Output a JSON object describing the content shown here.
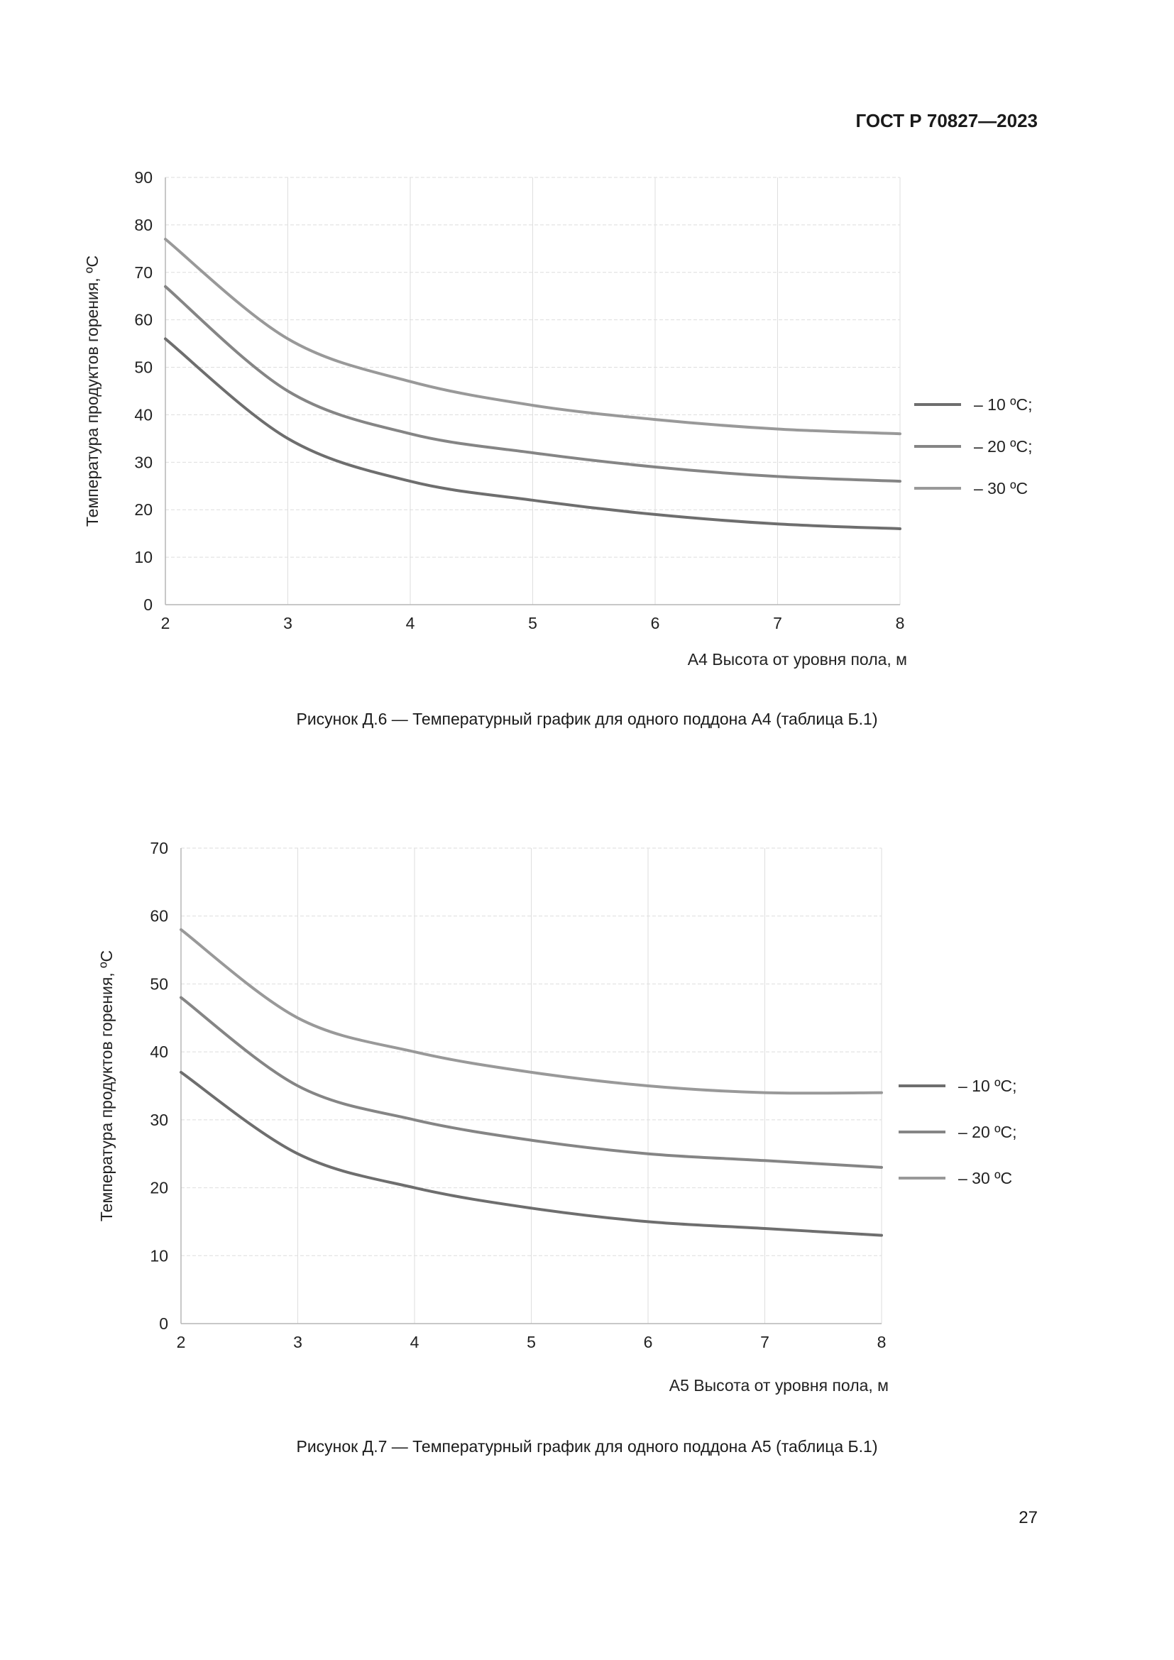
{
  "header": {
    "doc_code": "ГОСТ Р 70827—2023"
  },
  "footer": {
    "page_number": "27"
  },
  "chart_data": [
    {
      "type": "line",
      "caption": "Рисунок Д.6 — Температурный график для одного поддона А4 (таблица Б.1)",
      "xlabel": "А4 Высота от уровня пола, м",
      "ylabel": "Температура продуктов горения, ºС",
      "xlim": [
        2,
        8
      ],
      "ylim": [
        0,
        90
      ],
      "xticks": [
        2,
        3,
        4,
        5,
        6,
        7,
        8
      ],
      "yticks": [
        0,
        10,
        20,
        30,
        40,
        50,
        60,
        70,
        80,
        90
      ],
      "grid": true,
      "legend_position": "right",
      "x": [
        2,
        3,
        4,
        5,
        6,
        7,
        8
      ],
      "series": [
        {
          "name": "– 10 ºС;",
          "color": "#6e6e6e",
          "values": [
            56,
            35,
            26,
            22,
            19,
            17,
            16
          ]
        },
        {
          "name": "– 20 ºС;",
          "color": "#858585",
          "values": [
            67,
            45,
            36,
            32,
            29,
            27,
            26
          ]
        },
        {
          "name": "– 30 ºС",
          "color": "#999999",
          "values": [
            77,
            56,
            47,
            42,
            39,
            37,
            36
          ]
        }
      ]
    },
    {
      "type": "line",
      "caption": "Рисунок Д.7 — Температурный график для одного поддона А5 (таблица Б.1)",
      "xlabel": "А5 Высота от уровня пола, м",
      "ylabel": "Температура продуктов горения, ºС",
      "xlim": [
        2,
        8
      ],
      "ylim": [
        0,
        70
      ],
      "xticks": [
        2,
        3,
        4,
        5,
        6,
        7,
        8
      ],
      "yticks": [
        0,
        10,
        20,
        30,
        40,
        50,
        60,
        70
      ],
      "grid": true,
      "legend_position": "right",
      "x": [
        2,
        3,
        4,
        5,
        6,
        7,
        8
      ],
      "series": [
        {
          "name": "– 10 ºС;",
          "color": "#6e6e6e",
          "values": [
            37,
            25,
            20,
            17,
            15,
            14,
            13
          ]
        },
        {
          "name": "– 20 ºС;",
          "color": "#858585",
          "values": [
            48,
            35,
            30,
            27,
            25,
            24,
            23
          ]
        },
        {
          "name": "– 30 ºС",
          "color": "#999999",
          "values": [
            58,
            45,
            40,
            37,
            35,
            34,
            34
          ]
        }
      ]
    }
  ]
}
